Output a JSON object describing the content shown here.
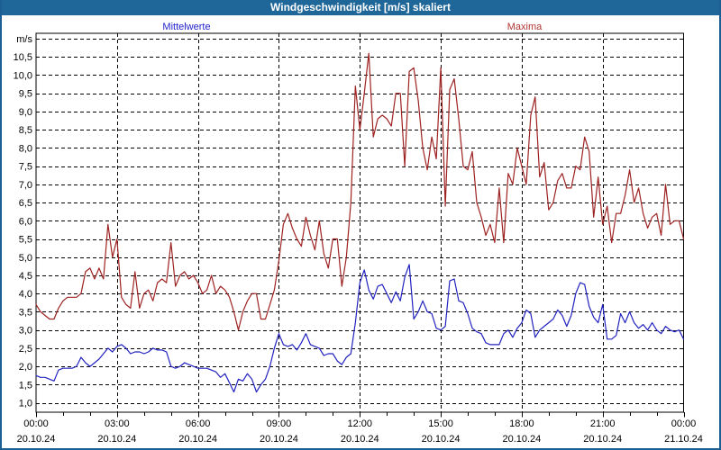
{
  "window": {
    "title": "Windgeschwindigkeit [m/s] skaliert"
  },
  "legend": {
    "mean_label": "Mittelwerte",
    "max_label": "Maxima"
  },
  "colors": {
    "titlebar_bg": "#1f6699",
    "titlebar_text": "#ffffff",
    "frame_border": "#1c5f93",
    "plot_bg": "#ffffff",
    "grid": "#000000",
    "mean_line": "#2222bf",
    "mean_label": "#2222cc",
    "max_line": "#9e2222",
    "max_label": "#b13434"
  },
  "axes": {
    "y_unit_label": "m/s",
    "y_tick_labels": [
      {
        "value": 10.5,
        "label": "10,5"
      },
      {
        "value": 10.0,
        "label": "10,0"
      },
      {
        "value": 9.5,
        "label": "9,5"
      },
      {
        "value": 9.0,
        "label": "9,0"
      },
      {
        "value": 8.5,
        "label": "8,5"
      },
      {
        "value": 8.0,
        "label": "8,0"
      },
      {
        "value": 7.5,
        "label": "7,5"
      },
      {
        "value": 7.0,
        "label": "7,0"
      },
      {
        "value": 6.5,
        "label": "6,5"
      },
      {
        "value": 6.0,
        "label": "6,0"
      },
      {
        "value": 5.5,
        "label": "5,5"
      },
      {
        "value": 5.0,
        "label": "5,0"
      },
      {
        "value": 4.5,
        "label": "4,5"
      },
      {
        "value": 4.0,
        "label": "4,0"
      },
      {
        "value": 3.5,
        "label": "3,5"
      },
      {
        "value": 3.0,
        "label": "3,0"
      },
      {
        "value": 2.5,
        "label": "2,5"
      },
      {
        "value": 2.0,
        "label": "2,0"
      },
      {
        "value": 1.5,
        "label": "1,5"
      },
      {
        "value": 1.0,
        "label": "1,0"
      }
    ],
    "x_tick_labels": [
      {
        "hour": 0,
        "time": "00:00",
        "date": "20.10.24"
      },
      {
        "hour": 3,
        "time": "03:00",
        "date": "20.10.24"
      },
      {
        "hour": 6,
        "time": "06:00",
        "date": "20.10.24"
      },
      {
        "hour": 9,
        "time": "09:00",
        "date": "20.10.24"
      },
      {
        "hour": 12,
        "time": "12:00",
        "date": "20.10.24"
      },
      {
        "hour": 15,
        "time": "15:00",
        "date": "20.10.24"
      },
      {
        "hour": 18,
        "time": "18:00",
        "date": "20.10.24"
      },
      {
        "hour": 21,
        "time": "21:00",
        "date": "20.10.24"
      },
      {
        "hour": 24,
        "time": "00:00",
        "date": "21.10.24"
      }
    ]
  },
  "chart_data": {
    "type": "line",
    "title": "Windgeschwindigkeit [m/s] skaliert",
    "ylabel": "m/s",
    "ylim": [
      0.74,
      11.15
    ],
    "y_grid_step": 0.5,
    "y_grid_max": 11.0,
    "x_grid_step_hours": 3,
    "x_minor_tick_hours": 1,
    "grid": "dashed",
    "legend_position": "top",
    "x_axis": {
      "start": "20.10.24 00:00",
      "end": "21.10.24 00:00",
      "step_minutes": 10
    },
    "series": [
      {
        "name": "Mittelwerte",
        "color": "#2222bf",
        "values": [
          1.75,
          1.7,
          1.7,
          1.65,
          1.6,
          1.9,
          1.95,
          1.95,
          1.95,
          2.0,
          2.25,
          2.1,
          2.0,
          2.1,
          2.2,
          2.35,
          2.5,
          2.4,
          2.55,
          2.6,
          2.5,
          2.35,
          2.4,
          2.4,
          2.35,
          2.4,
          2.5,
          2.45,
          2.45,
          2.4,
          2.0,
          1.95,
          2.0,
          2.1,
          2.05,
          2.0,
          1.95,
          1.95,
          1.95,
          1.9,
          1.85,
          1.7,
          1.8,
          1.55,
          1.3,
          1.65,
          1.6,
          1.8,
          1.65,
          1.3,
          1.5,
          1.65,
          2.0,
          2.5,
          2.9,
          2.6,
          2.55,
          2.6,
          2.45,
          2.65,
          2.9,
          2.6,
          2.55,
          2.5,
          2.3,
          2.35,
          2.35,
          2.15,
          2.05,
          2.25,
          2.35,
          3.2,
          4.3,
          4.65,
          4.1,
          3.85,
          4.2,
          4.25,
          4.0,
          3.75,
          4.05,
          3.8,
          4.45,
          4.8,
          3.3,
          3.5,
          3.8,
          3.5,
          3.45,
          3.05,
          3.0,
          3.1,
          4.35,
          4.4,
          3.8,
          3.75,
          3.45,
          3.05,
          2.95,
          2.9,
          2.65,
          2.6,
          2.6,
          2.6,
          2.9,
          3.0,
          2.8,
          3.05,
          3.2,
          3.55,
          3.45,
          2.8,
          3.0,
          3.1,
          3.2,
          3.3,
          3.55,
          3.4,
          3.1,
          3.4,
          4.0,
          4.3,
          4.25,
          3.65,
          3.35,
          3.2,
          3.7,
          2.75,
          2.75,
          2.85,
          3.45,
          3.2,
          3.5,
          3.2,
          3.05,
          3.15,
          3.0,
          3.2,
          3.0,
          2.9,
          3.1,
          3.0,
          2.95,
          3.0,
          2.75
        ]
      },
      {
        "name": "Maxima",
        "color": "#9e2222",
        "values": [
          3.7,
          3.5,
          3.4,
          3.3,
          3.3,
          3.6,
          3.8,
          3.9,
          3.9,
          3.9,
          4.0,
          4.6,
          4.7,
          4.4,
          4.7,
          4.4,
          5.9,
          5.0,
          5.5,
          3.9,
          3.7,
          3.6,
          4.6,
          3.6,
          4.0,
          4.1,
          3.8,
          4.3,
          4.4,
          4.3,
          5.4,
          4.2,
          4.5,
          4.6,
          4.4,
          4.5,
          4.3,
          4.0,
          4.1,
          4.5,
          4.0,
          4.2,
          4.1,
          3.9,
          3.5,
          3.0,
          3.5,
          3.8,
          4.0,
          4.0,
          3.3,
          3.3,
          3.7,
          4.1,
          4.9,
          5.9,
          6.2,
          5.8,
          5.5,
          5.3,
          6.1,
          5.6,
          5.2,
          6.0,
          5.1,
          4.7,
          5.5,
          5.5,
          4.2,
          5.0,
          6.5,
          9.7,
          8.5,
          9.5,
          10.6,
          8.3,
          8.8,
          8.9,
          8.8,
          8.6,
          9.5,
          9.5,
          7.5,
          10.1,
          10.2,
          9.3,
          8.0,
          7.4,
          8.3,
          7.7,
          10.2,
          6.4,
          9.6,
          9.9,
          8.8,
          7.5,
          7.4,
          7.9,
          6.5,
          6.1,
          5.6,
          5.9,
          5.4,
          6.9,
          5.4,
          7.3,
          7.0,
          8.0,
          7.5,
          7.0,
          8.9,
          9.4,
          7.2,
          7.6,
          6.3,
          6.5,
          7.1,
          7.3,
          6.9,
          6.9,
          7.5,
          7.4,
          8.3,
          7.9,
          6.1,
          7.2,
          5.9,
          6.4,
          5.4,
          6.2,
          6.2,
          6.7,
          7.4,
          6.5,
          6.9,
          6.2,
          5.8,
          6.1,
          6.2,
          5.6,
          7.0,
          5.9,
          6.0,
          6.0,
          5.5
        ]
      }
    ]
  }
}
